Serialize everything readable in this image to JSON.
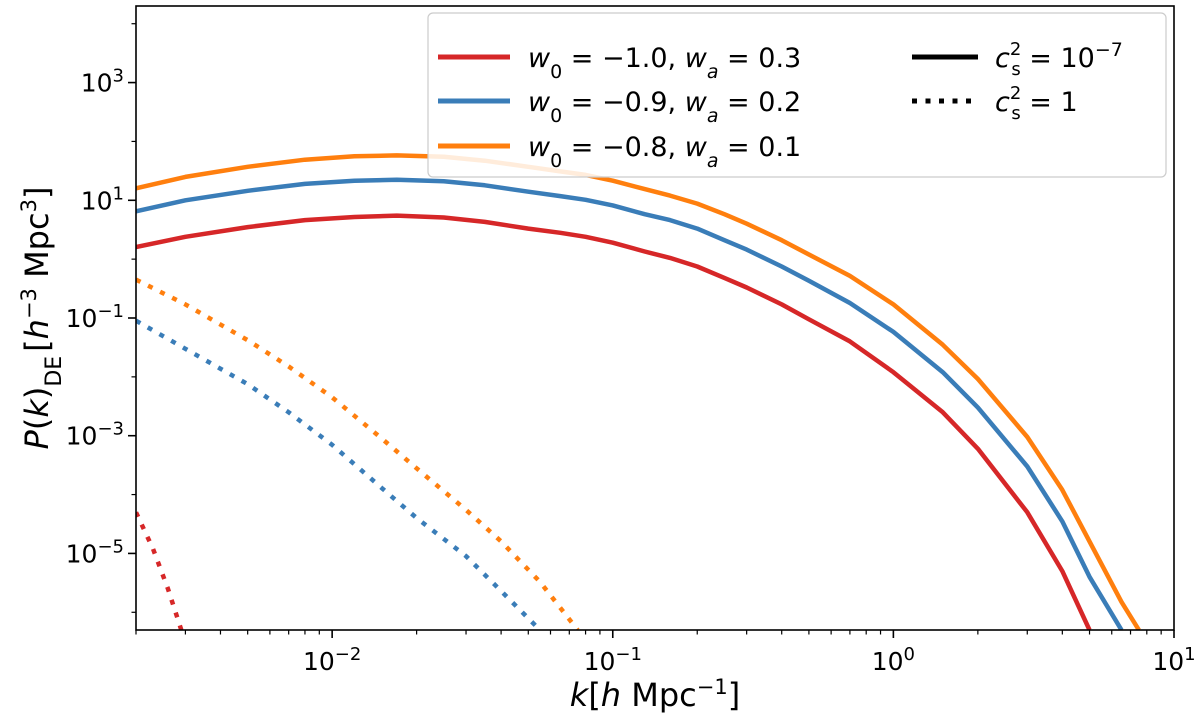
{
  "chart_data": {
    "type": "line",
    "xscale": "log",
    "yscale": "log",
    "xlim": [
      0.002,
      10
    ],
    "ylim": [
      5e-07,
      20000
    ],
    "xlabel": {
      "base": "k",
      "unit": "h Mpc",
      "unit_exp": "−1"
    },
    "ylabel": {
      "base": "P(k)",
      "sub": "DE",
      "unit": "h",
      "unit_exp": "−3",
      "unit2": "Mpc",
      "unit2_exp": "3"
    },
    "x_ticks": [
      {
        "value": 0.01,
        "base": "10",
        "exp": "−2"
      },
      {
        "value": 0.1,
        "base": "10",
        "exp": "−1"
      },
      {
        "value": 1,
        "base": "10",
        "exp": "0"
      },
      {
        "value": 10,
        "base": "10",
        "exp": "1"
      }
    ],
    "y_ticks": [
      {
        "value": 1e-05,
        "base": "10",
        "exp": "−5"
      },
      {
        "value": 0.001,
        "base": "10",
        "exp": "−3"
      },
      {
        "value": 0.1,
        "base": "10",
        "exp": "−1"
      },
      {
        "value": 10,
        "base": "10",
        "exp": "1"
      },
      {
        "value": 1000,
        "base": "10",
        "exp": "3"
      }
    ],
    "grid": false,
    "legend_position": "top-right",
    "legend_colors": [
      {
        "w0": "−1.0",
        "wa": "0.3",
        "color": "#d62728"
      },
      {
        "w0": "−0.9",
        "wa": "0.2",
        "color": "#3a7db8"
      },
      {
        "w0": "−0.8",
        "wa": "0.1",
        "color": "#ff7f0e"
      }
    ],
    "legend_styles": [
      {
        "style": "solid",
        "label": "c_s^2 = 10^-7",
        "exp": "−7",
        "rhs": "10"
      },
      {
        "style": "dotted",
        "label": "c_s^2 = 1",
        "exp": "",
        "rhs": "1"
      }
    ],
    "series": [
      {
        "color": "#d62728",
        "style": "solid",
        "x": [
          0.002,
          0.003,
          0.005,
          0.008,
          0.012,
          0.017,
          0.025,
          0.035,
          0.05,
          0.065,
          0.08,
          0.1,
          0.13,
          0.16,
          0.2,
          0.25,
          0.3,
          0.4,
          0.5,
          0.7,
          1.0,
          1.5,
          2.0,
          3.0,
          4.0,
          5.0
        ],
        "y": [
          1.6,
          2.4,
          3.5,
          4.6,
          5.2,
          5.5,
          5.1,
          4.3,
          3.3,
          2.8,
          2.4,
          1.9,
          1.35,
          1.05,
          0.75,
          0.48,
          0.33,
          0.17,
          0.095,
          0.04,
          0.012,
          0.0025,
          0.0006,
          5e-05,
          5e-06,
          5e-07
        ]
      },
      {
        "color": "#3a7db8",
        "style": "solid",
        "x": [
          0.002,
          0.003,
          0.005,
          0.008,
          0.012,
          0.017,
          0.025,
          0.035,
          0.05,
          0.065,
          0.08,
          0.1,
          0.13,
          0.16,
          0.2,
          0.25,
          0.3,
          0.4,
          0.5,
          0.7,
          1.0,
          1.5,
          2.0,
          3.0,
          4.0,
          5.0,
          6.5
        ],
        "y": [
          6.5,
          10,
          14.5,
          19,
          21.5,
          22.3,
          21,
          18,
          14,
          11.8,
          10.2,
          8.2,
          5.8,
          4.6,
          3.3,
          2.1,
          1.45,
          0.75,
          0.43,
          0.18,
          0.058,
          0.012,
          0.003,
          0.0003,
          3.5e-05,
          4e-06,
          5e-07
        ]
      },
      {
        "color": "#ff7f0e",
        "style": "solid",
        "x": [
          0.002,
          0.003,
          0.005,
          0.008,
          0.012,
          0.017,
          0.025,
          0.035,
          0.05,
          0.065,
          0.08,
          0.1,
          0.13,
          0.16,
          0.2,
          0.25,
          0.3,
          0.4,
          0.5,
          0.7,
          1.0,
          1.5,
          2.0,
          3.0,
          4.0,
          5.0,
          6.5,
          7.5
        ],
        "y": [
          16,
          25,
          37,
          49,
          56,
          58,
          55,
          47,
          37,
          31,
          27,
          21.5,
          15.5,
          12,
          8.8,
          5.8,
          4,
          2.1,
          1.2,
          0.52,
          0.17,
          0.035,
          0.0092,
          0.00095,
          0.00012,
          1.6e-05,
          1.5e-06,
          5e-07
        ]
      },
      {
        "color": "#d62728",
        "style": "dotted",
        "x": [
          0.002,
          0.0023,
          0.0026,
          0.0029
        ],
        "y": [
          5e-05,
          1.2e-05,
          2.5e-06,
          5e-07
        ]
      },
      {
        "color": "#3a7db8",
        "style": "dotted",
        "x": [
          0.002,
          0.003,
          0.005,
          0.007,
          0.01,
          0.015,
          0.02,
          0.03,
          0.04,
          0.055
        ],
        "y": [
          0.09,
          0.03,
          0.0075,
          0.0025,
          0.0007,
          0.00013,
          4e-05,
          9e-06,
          2.3e-06,
          5e-07
        ]
      },
      {
        "color": "#ff7f0e",
        "style": "dotted",
        "x": [
          0.002,
          0.003,
          0.005,
          0.007,
          0.01,
          0.015,
          0.02,
          0.03,
          0.04,
          0.055,
          0.075
        ],
        "y": [
          0.45,
          0.17,
          0.042,
          0.015,
          0.0045,
          0.0009,
          0.00028,
          5.5e-05,
          1.6e-05,
          3.3e-06,
          5e-07
        ]
      }
    ]
  }
}
